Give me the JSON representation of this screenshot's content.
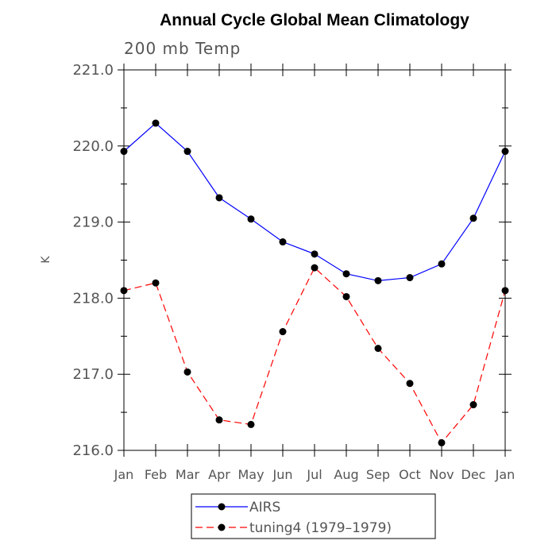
{
  "chart_data": {
    "type": "line",
    "title": "Annual Cycle Global Mean Climatology",
    "subtitle": "200 mb Temp",
    "ylabel": "K",
    "xlabel": "",
    "categories": [
      "Jan",
      "Feb",
      "Mar",
      "Apr",
      "May",
      "Jun",
      "Jul",
      "Aug",
      "Sep",
      "Oct",
      "Nov",
      "Dec",
      "Jan"
    ],
    "ylim": [
      216.0,
      221.0
    ],
    "yticks": [
      "216.0",
      "217.0",
      "218.0",
      "219.0",
      "220.0",
      "221.0"
    ],
    "grid": false,
    "legend_position": "bottom-center",
    "series": [
      {
        "name": "AIRS",
        "color": "#0000ff",
        "dash": "solid",
        "values": [
          219.93,
          220.3,
          219.93,
          219.32,
          219.04,
          218.74,
          218.58,
          218.32,
          218.23,
          218.27,
          218.45,
          219.05,
          219.93
        ]
      },
      {
        "name": "tuning4 (1979–1979)",
        "color": "#ff0000",
        "dash": "dashed",
        "values": [
          218.1,
          218.2,
          217.03,
          216.4,
          216.34,
          217.56,
          218.4,
          218.02,
          217.34,
          216.88,
          216.1,
          216.6,
          218.1
        ]
      }
    ]
  }
}
